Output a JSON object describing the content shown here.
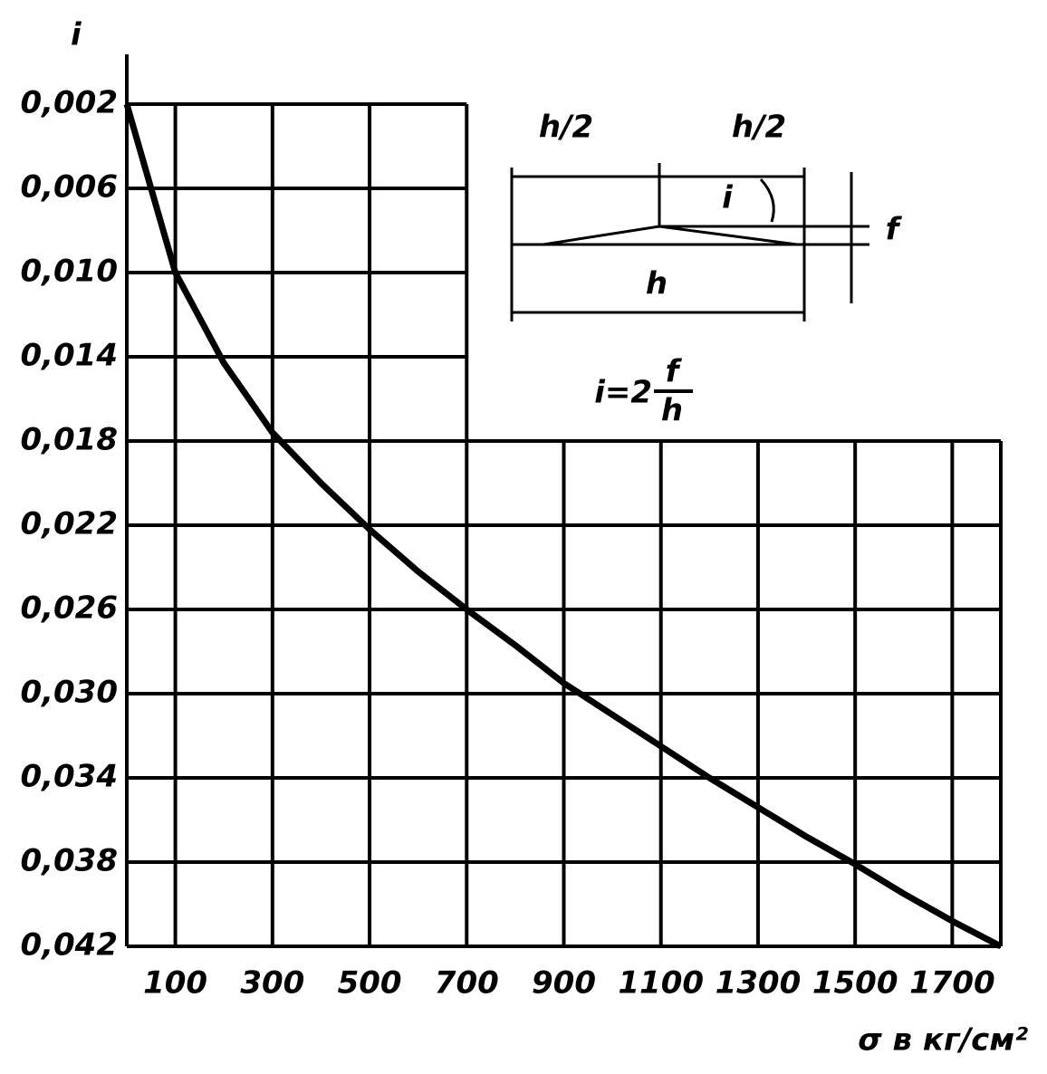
{
  "chart_data": {
    "type": "line",
    "y_label": "i",
    "x_label": "σ в кг/см²",
    "x": [
      0,
      50,
      100,
      200,
      300,
      400,
      500,
      600,
      700,
      800,
      900,
      1000,
      1100,
      1200,
      1300,
      1400,
      1500,
      1600,
      1700,
      1800
    ],
    "series": [
      {
        "color": "#000000",
        "values": [
          0.002,
          0.006,
          0.01,
          0.0143,
          0.0176,
          0.02,
          0.0222,
          0.0242,
          0.026,
          0.0277,
          0.0295,
          0.031,
          0.0325,
          0.034,
          0.0354,
          0.0368,
          0.0381,
          0.0395,
          0.0408,
          0.042
        ]
      }
    ],
    "xlim": [
      0,
      1800
    ],
    "xticks": [
      100,
      300,
      500,
      700,
      900,
      1100,
      1300,
      1500,
      1700
    ],
    "ylim": [
      0.002,
      0.042
    ],
    "y_inverted": true,
    "yticks": [
      {
        "value": 0.002,
        "label": "0,002"
      },
      {
        "value": 0.006,
        "label": "0,006"
      },
      {
        "value": 0.01,
        "label": "0,010"
      },
      {
        "value": 0.014,
        "label": "0,014"
      },
      {
        "value": 0.018,
        "label": "0,018"
      },
      {
        "value": 0.022,
        "label": "0,022"
      },
      {
        "value": 0.026,
        "label": "0,026"
      },
      {
        "value": 0.03,
        "label": "0,030"
      },
      {
        "value": 0.034,
        "label": "0,034"
      },
      {
        "value": 0.038,
        "label": "0,038"
      },
      {
        "value": 0.042,
        "label": "0,042"
      }
    ],
    "grid": true,
    "annotations": {
      "half_left": "h/2",
      "half_right": "h/2",
      "angle": "i",
      "deflection": "f",
      "span": "h",
      "formula_left": "i=2",
      "formula_num": "f",
      "formula_den": "h"
    }
  }
}
